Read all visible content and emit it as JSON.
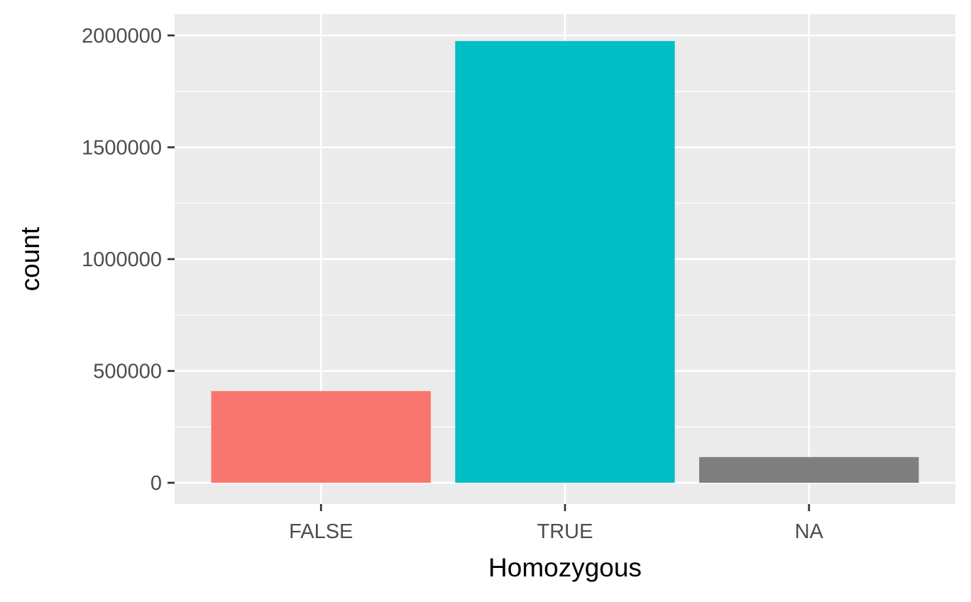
{
  "chart_data": {
    "type": "bar",
    "title": "",
    "xlabel": "Homozygous",
    "ylabel": "count",
    "categories": [
      "FALSE",
      "TRUE",
      "NA"
    ],
    "values": [
      410000,
      1975000,
      115000
    ],
    "bar_colors": [
      "#F8766D",
      "#00BFC4",
      "#7F7F7F"
    ],
    "ylim": [
      -95000,
      2095000
    ],
    "y_ticks": [
      0,
      500000,
      1000000,
      1500000,
      2000000
    ],
    "y_tick_labels": [
      "0",
      "500000",
      "1000000",
      "1500000",
      "2000000"
    ],
    "y_minor_ticks": [
      250000,
      750000,
      1250000,
      1750000
    ],
    "grid": true,
    "legend": "none",
    "panel_background": "#EBEBEB",
    "grid_color": "#FFFFFF"
  }
}
